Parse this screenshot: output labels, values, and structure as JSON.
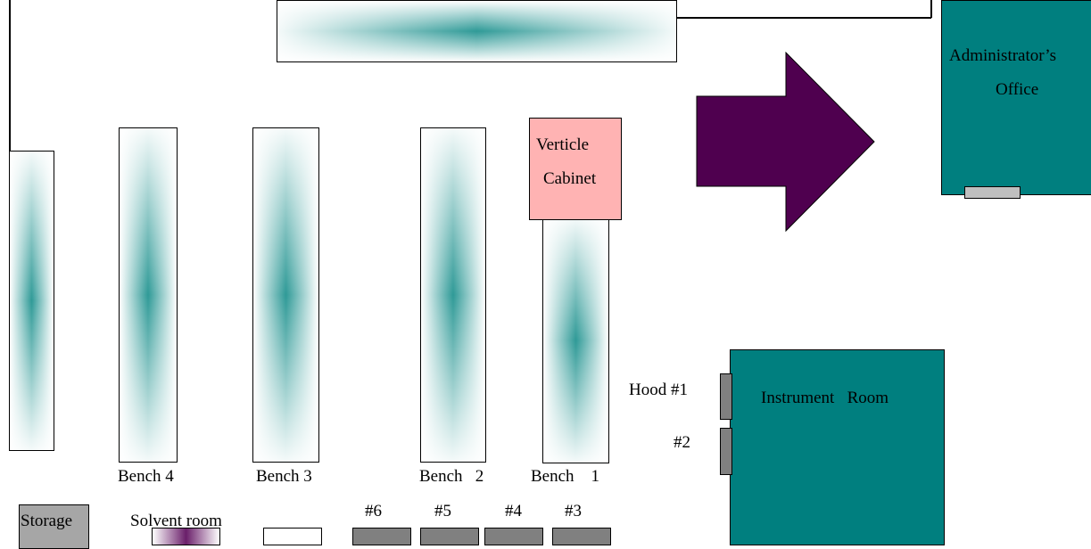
{
  "labels": {
    "administrator_office_line1": "Administrator’s",
    "administrator_office_line2": "Office",
    "cabinet_line1": "Verticle",
    "cabinet_line2": "Cabinet",
    "instrument_room": "Instrument   Room",
    "hood1": "Hood #1",
    "hood2": "#2",
    "bench4": "Bench 4",
    "bench3": "Bench 3",
    "bench2": "Bench   2",
    "bench1": "Bench    1",
    "storage": "Storage",
    "solvent_room": "Solvent room",
    "hood6": "#6",
    "hood5": "#5",
    "hood4": "#4",
    "hood3": "#3"
  },
  "colors": {
    "teal": "#007f7f",
    "arrow": "#4f004f",
    "cabinet": "#ffb3b3",
    "hood": "#808080",
    "storage": "#a6a6a6"
  }
}
